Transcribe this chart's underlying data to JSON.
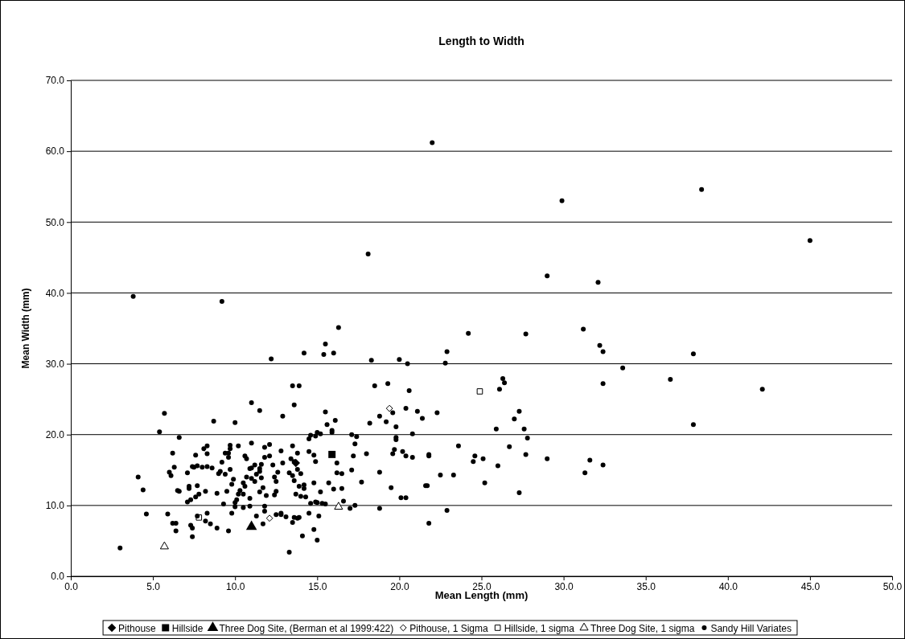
{
  "chart_data": {
    "type": "scatter",
    "title": "Length to Width",
    "xlabel": "Mean Length (mm)",
    "ylabel": "Mean Width (mm)",
    "xlim": [
      0,
      50
    ],
    "ylim": [
      0,
      70
    ],
    "xticks": [
      {
        "value": 0,
        "label": "0.0"
      },
      {
        "value": 5,
        "label": "5.0"
      },
      {
        "value": 10,
        "label": "10.0"
      },
      {
        "value": 15,
        "label": "15.0"
      },
      {
        "value": 20,
        "label": "20.0"
      },
      {
        "value": 25,
        "label": "25.0"
      },
      {
        "value": 30,
        "label": "30.0"
      },
      {
        "value": 35,
        "label": "35.0"
      },
      {
        "value": 40,
        "label": "40.0"
      },
      {
        "value": 45,
        "label": "45.0"
      },
      {
        "value": 50,
        "label": "50.0"
      }
    ],
    "yticks": [
      {
        "value": 0,
        "label": "0.0"
      },
      {
        "value": 10,
        "label": "10.0"
      },
      {
        "value": 20,
        "label": "20.0"
      },
      {
        "value": 30,
        "label": "30.0"
      },
      {
        "value": 40,
        "label": "40.0"
      },
      {
        "value": 50,
        "label": "50.0"
      },
      {
        "value": 60,
        "label": "60.0"
      },
      {
        "value": 70,
        "label": "70.0"
      }
    ],
    "grid": "y",
    "legend": "bottom",
    "series": [
      {
        "name": "Pithouse",
        "color": "#000000",
        "marker": "diamond",
        "x": [
          13.7
        ],
        "values": [
          16.0
        ]
      },
      {
        "name": "Hillside",
        "color": "#000000",
        "marker": "square",
        "x": [
          15.9
        ],
        "values": [
          17.2
        ]
      },
      {
        "name": "Three Dog Site, (Berman et al 1999:422)",
        "color": "#000000",
        "marker": "triangle",
        "x": [
          11.0
        ],
        "values": [
          7.0
        ]
      },
      {
        "name": "Pithouse, 1 Sigma",
        "color": "#ffffff",
        "marker": "diamond",
        "x": [
          19.4,
          12.1
        ],
        "values": [
          23.7,
          8.2
        ]
      },
      {
        "name": "Hillside, 1 sigma",
        "color": "#ffffff",
        "marker": "square",
        "x": [
          7.8,
          24.9
        ],
        "values": [
          8.3,
          26.1
        ]
      },
      {
        "name": "Three Dog Site, 1 sigma",
        "color": "#ffffff",
        "marker": "triangle",
        "x": [
          5.7,
          16.3
        ],
        "values": [
          4.2,
          9.8
        ]
      },
      {
        "name": "Sandy Hill Variates",
        "color": "#000000",
        "marker": "circle",
        "x": [
          3.0,
          3.8,
          9.2,
          18.1,
          22.0,
          29.9,
          38.4,
          45.0,
          29.0,
          32.1,
          42.1,
          36.5,
          33.6,
          31.2,
          32.2,
          32.4,
          37.9,
          37.9,
          32.4,
          27.7,
          24.2,
          22.9,
          22.8,
          20.0,
          20.5,
          18.3,
          16.3,
          15.5,
          15.4,
          16.0,
          14.2,
          12.2,
          13.5,
          13.9,
          13.6,
          11.0,
          11.5,
          12.9,
          5.7,
          5.4,
          6.6,
          8.7,
          10.0,
          18.5,
          19.3,
          20.6,
          19.6,
          20.4,
          21.1,
          21.4,
          22.3,
          18.8,
          18.2,
          19.2,
          19.8,
          20.8,
          19.8,
          19.8,
          19.7,
          19.6,
          20.2,
          20.4,
          20.8,
          21.8,
          21.8,
          23.6,
          24.6,
          24.5,
          25.1,
          25.2,
          22.5,
          23.3,
          22.9,
          21.8,
          26.0,
          25.9,
          26.3,
          26.4,
          26.1,
          26.7,
          27.0,
          27.3,
          27.6,
          27.8,
          27.7,
          29.0,
          27.3,
          31.3,
          31.6,
          32.4,
          21.6,
          21.7,
          20.1,
          20.4,
          19.5,
          18.8,
          18.0,
          17.7,
          18.8,
          17.3,
          17.1,
          17.1,
          17.3,
          17.4,
          17.2,
          17.0,
          16.6,
          16.5,
          16.5,
          16.0,
          16.2,
          16.2,
          15.7,
          15.2,
          15.5,
          15.0,
          15.3,
          14.9,
          15.1,
          15.0,
          14.8,
          14.5,
          14.6,
          14.8,
          14.9,
          14.5,
          14.5,
          14.8,
          14.6,
          14.9,
          15.2,
          15.6,
          15.9,
          15.9,
          16.1,
          15.5,
          15.0,
          13.8,
          13.3,
          13.4,
          13.6,
          13.8,
          13.5,
          13.5,
          14.0,
          13.6,
          13.9,
          14.2,
          13.7,
          14.3,
          14.0,
          14.2,
          13.9,
          13.6,
          13.5,
          13.8,
          13.3,
          14.1,
          13.1,
          12.8,
          12.8,
          12.5,
          12.5,
          12.4,
          12.5,
          12.9,
          12.3,
          12.4,
          12.8,
          12.1,
          12.1,
          11.8,
          11.8,
          11.9,
          11.8,
          11.8,
          11.7,
          11.3,
          11.5,
          11.7,
          11.6,
          11.5,
          11.5,
          11.3,
          11.2,
          11.0,
          10.9,
          11.0,
          11.2,
          10.7,
          10.5,
          10.6,
          10.3,
          10.2,
          10.5,
          10.1,
          10.0,
          10.0,
          9.8,
          10.5,
          10.7,
          10.6,
          11.0,
          10.2,
          10.9,
          10.9,
          9.8,
          9.9,
          9.7,
          9.6,
          9.6,
          9.7,
          9.7,
          9.4,
          9.2,
          9.4,
          9.5,
          9.3,
          9.6,
          8.9,
          9.1,
          9.0,
          8.6,
          8.3,
          8.3,
          8.3,
          8.2,
          8.1,
          8.0,
          7.8,
          7.7,
          7.6,
          7.6,
          7.7,
          7.5,
          7.4,
          7.3,
          7.2,
          7.2,
          7.1,
          7.1,
          7.3,
          7.4,
          7.4,
          8.3,
          8.2,
          8.5,
          8.9,
          6.5,
          6.3,
          6.6,
          6.2,
          6.1,
          6.0,
          5.9,
          6.2,
          6.4,
          6.4,
          4.1,
          4.4,
          4.6,
          11.6,
          12.6,
          7.7
        ],
        "values": [
          4.0,
          39.5,
          38.8,
          45.5,
          61.2,
          53.0,
          54.6,
          47.4,
          42.4,
          41.5,
          26.4,
          27.8,
          29.4,
          34.9,
          32.6,
          31.7,
          31.4,
          21.4,
          27.2,
          34.2,
          34.3,
          31.7,
          30.1,
          30.6,
          30.0,
          30.5,
          35.1,
          32.8,
          31.3,
          31.5,
          31.5,
          30.7,
          26.9,
          26.9,
          24.2,
          24.5,
          23.4,
          22.6,
          23.0,
          20.4,
          19.6,
          21.9,
          21.7,
          26.9,
          27.2,
          26.2,
          23.1,
          23.7,
          23.3,
          22.3,
          23.1,
          22.6,
          21.6,
          21.8,
          21.1,
          20.1,
          19.3,
          19.6,
          17.9,
          17.3,
          17.6,
          17.0,
          16.8,
          17.0,
          17.2,
          18.4,
          17.0,
          16.2,
          16.6,
          13.2,
          14.3,
          14.3,
          9.3,
          7.5,
          15.6,
          20.8,
          27.9,
          27.3,
          26.4,
          18.3,
          22.2,
          23.3,
          20.8,
          19.5,
          17.2,
          16.6,
          11.8,
          14.6,
          16.4,
          15.7,
          12.8,
          12.8,
          11.1,
          11.1,
          12.5,
          14.7,
          17.3,
          13.3,
          9.6,
          10.0,
          15.0,
          20.0,
          18.7,
          19.7,
          17.0,
          9.6,
          10.6,
          12.4,
          14.5,
          12.3,
          14.6,
          16.0,
          13.2,
          11.9,
          10.2,
          10.4,
          10.3,
          10.5,
          8.5,
          5.1,
          6.6,
          8.9,
          10.3,
          13.2,
          16.2,
          19.4,
          17.6,
          17.1,
          19.9,
          19.8,
          20.1,
          21.4,
          20.6,
          20.3,
          22.0,
          23.2,
          20.3,
          15.1,
          14.6,
          16.6,
          16.2,
          17.4,
          18.4,
          14.2,
          14.5,
          13.5,
          12.7,
          12.4,
          11.6,
          11.2,
          11.3,
          12.9,
          8.3,
          8.3,
          7.6,
          8.2,
          3.4,
          5.7,
          8.4,
          8.9,
          8.7,
          8.7,
          13.4,
          11.5,
          12.0,
          16.0,
          15.7,
          14.0,
          17.7,
          17.0,
          18.6,
          18.2,
          16.8,
          11.4,
          9.9,
          9.2,
          7.4,
          8.5,
          11.9,
          12.5,
          13.9,
          14.8,
          15.2,
          14.4,
          15.7,
          15.3,
          15.2,
          13.8,
          13.4,
          14.0,
          13.2,
          12.7,
          12.1,
          11.6,
          11.6,
          10.8,
          10.4,
          9.8,
          8.9,
          9.7,
          16.6,
          17.0,
          18.8,
          18.4,
          11.0,
          9.9,
          13.0,
          13.7,
          15.1,
          16.8,
          17.4,
          18.0,
          18.5,
          17.4,
          16.1,
          14.4,
          12.0,
          10.2,
          6.4,
          11.7,
          14.8,
          14.5,
          15.3,
          15.5,
          17.3,
          18.4,
          12.0,
          18.0,
          15.4,
          11.6,
          12.8,
          11.2,
          17.1,
          15.6,
          15.4,
          15.5,
          10.8,
          12.7,
          12.4,
          10.5,
          14.6,
          7.2,
          6.8,
          5.6,
          8.9,
          7.8,
          7.4,
          6.8,
          12.1,
          15.4,
          12.0,
          17.4,
          14.2,
          14.7,
          8.8,
          7.5,
          7.5,
          6.4,
          14.0,
          12.2,
          8.8,
          15.8,
          14.7,
          8.5
        ]
      }
    ]
  }
}
